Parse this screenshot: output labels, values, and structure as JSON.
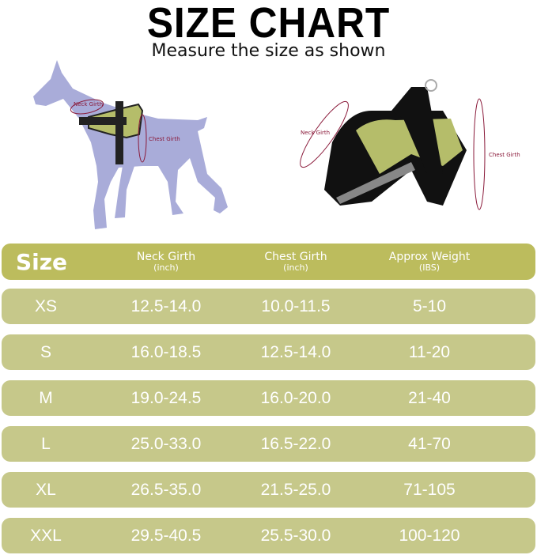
{
  "title": "SIZE CHART",
  "subtitle": "Measure the size as shown",
  "illustration": {
    "dog_labels": {
      "neck": "Neck Girth",
      "chest": "Chest Girth"
    },
    "harness_labels": {
      "neck": "Neck Girth",
      "chest": "Chest Girth"
    }
  },
  "colors": {
    "header_row": "#bcbc5d",
    "data_row": "#c6c88a",
    "measure_line": "#8a1a3a",
    "dog": "#a9acd9",
    "harness": "#b5bd6a"
  },
  "table": {
    "headers": [
      {
        "main": "Size",
        "sub": ""
      },
      {
        "main": "Neck Girth",
        "sub": "(inch)"
      },
      {
        "main": "Chest Girth",
        "sub": "(inch)"
      },
      {
        "main": "Approx Weight",
        "sub": "(IBS)"
      }
    ],
    "rows": [
      [
        "XS",
        "12.5-14.0",
        "10.0-11.5",
        "5-10"
      ],
      [
        "S",
        "16.0-18.5",
        "12.5-14.0",
        "11-20"
      ],
      [
        "M",
        "19.0-24.5",
        "16.0-20.0",
        "21-40"
      ],
      [
        "L",
        "25.0-33.0",
        "16.5-22.0",
        "41-70"
      ],
      [
        "XL",
        "26.5-35.0",
        "21.5-25.0",
        "71-105"
      ],
      [
        "XXL",
        "29.5-40.5",
        "25.5-30.0",
        "100-120"
      ]
    ]
  }
}
